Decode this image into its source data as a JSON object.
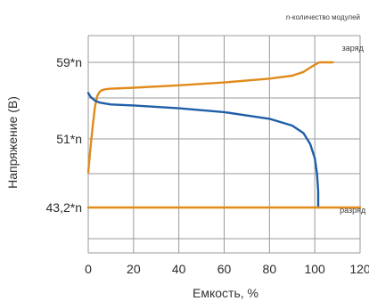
{
  "chart_data": {
    "type": "line",
    "note": "n-количество модулей",
    "xlabel": "Емкость, %",
    "ylabel": "Напряжение (В)",
    "xlim": [
      0,
      120
    ],
    "x_ticks": [
      "0",
      "20",
      "40",
      "60",
      "80",
      "100",
      "120"
    ],
    "y_ticks": [
      {
        "label": "59*n",
        "value": 59
      },
      {
        "label": "51*n",
        "value": 51
      },
      {
        "label": "43,2*n",
        "value": 43.2
      }
    ],
    "grid": true,
    "series": [
      {
        "name": "заряд",
        "color": "#e08b1c",
        "x": [
          0,
          1,
          2,
          3,
          4,
          5,
          6,
          8,
          10,
          20,
          40,
          60,
          80,
          90,
          95,
          99,
          102,
          104,
          108
        ],
        "y": [
          47.2,
          50.0,
          52.4,
          54.4,
          55.5,
          55.9,
          56.1,
          56.2,
          56.25,
          56.35,
          56.6,
          56.9,
          57.3,
          57.6,
          58.0,
          58.6,
          59.0,
          59.0,
          59.0
        ]
      },
      {
        "name": "разряд",
        "color": "#1f5ea8",
        "x": [
          0,
          1,
          3,
          5,
          10,
          20,
          40,
          60,
          80,
          90,
          95,
          98,
          100,
          101,
          101.5,
          101.5
        ],
        "y": [
          55.8,
          55.4,
          55.0,
          54.8,
          54.6,
          54.5,
          54.2,
          53.8,
          53.1,
          52.4,
          51.6,
          50.4,
          48.8,
          47.0,
          45.0,
          43.2
        ]
      },
      {
        "name": "",
        "color": "#e08b1c",
        "x": [
          0,
          120
        ],
        "y": [
          43.2,
          43.2
        ]
      }
    ],
    "series_labels": [
      {
        "text": "заряд",
        "x": 112,
        "y": 60.2
      },
      {
        "text": "разряд",
        "x": 111,
        "y": 42.6
      }
    ]
  }
}
